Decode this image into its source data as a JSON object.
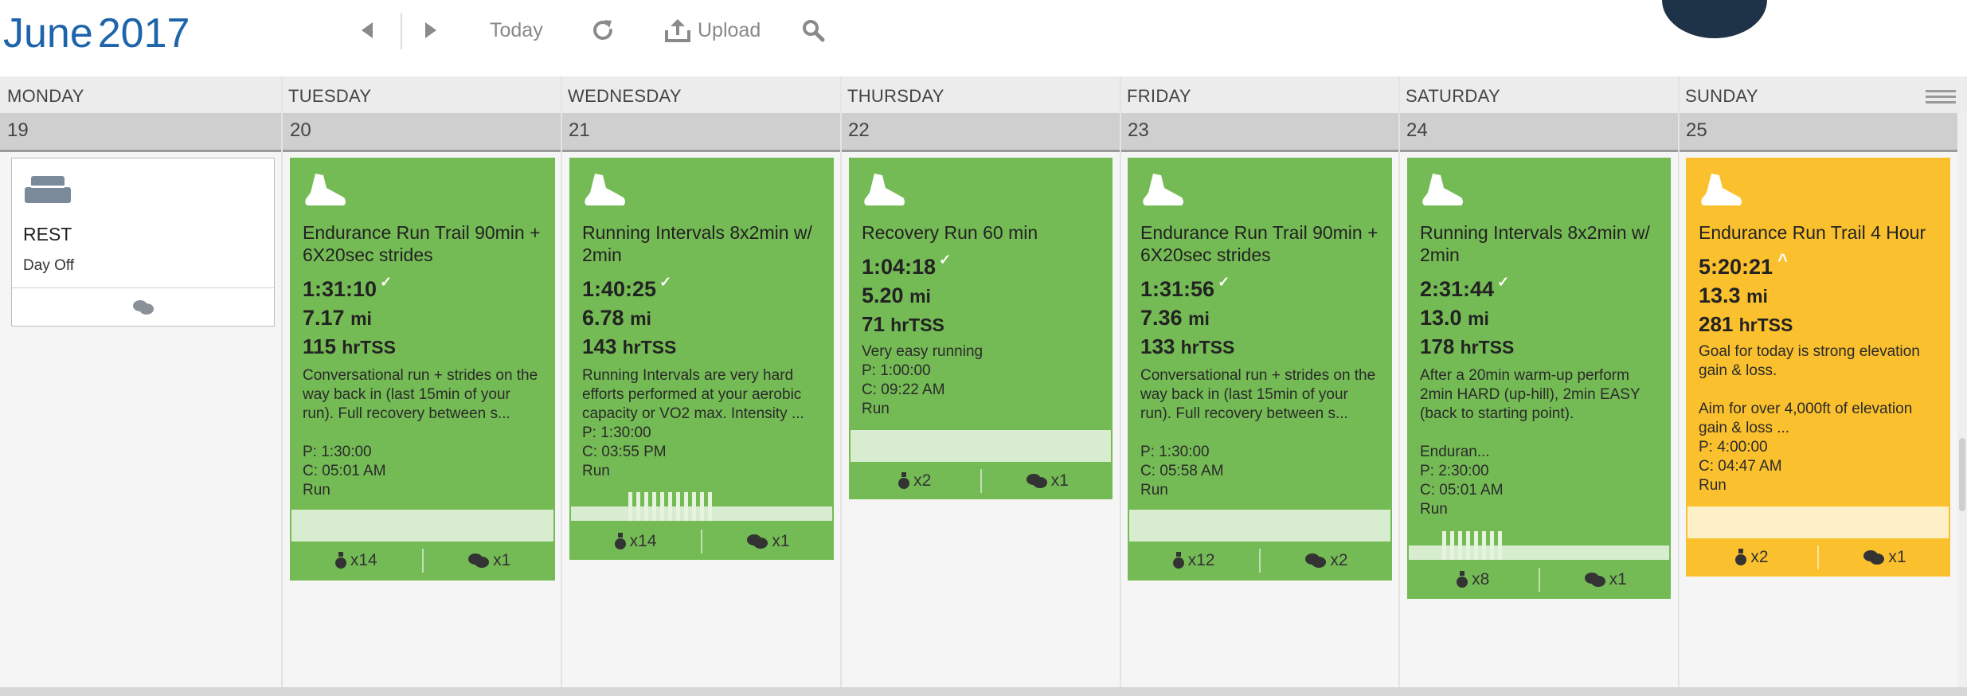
{
  "header": {
    "month": "June",
    "year": "2017",
    "today_label": "Today",
    "upload_label": "Upload"
  },
  "days": [
    {
      "name": "MONDAY",
      "num": "19"
    },
    {
      "name": "TUESDAY",
      "num": "20"
    },
    {
      "name": "WEDNESDAY",
      "num": "21"
    },
    {
      "name": "THURSDAY",
      "num": "22"
    },
    {
      "name": "FRIDAY",
      "num": "23"
    },
    {
      "name": "SATURDAY",
      "num": "24"
    },
    {
      "name": "SUNDAY",
      "num": "25"
    }
  ],
  "rest": {
    "title": "REST",
    "subtitle": "Day Off"
  },
  "workouts": [
    {
      "title": "Endurance Run Trail 90min + 6X20sec strides",
      "duration": "1:31:10",
      "distance_value": "7.17",
      "distance_unit": "mi",
      "tss_value": "115",
      "tss_unit": "hrTSS",
      "description": "Conversational run + strides on the way back in (last 15min of your run). Full recovery between s...",
      "planned": "P: 1:30:00",
      "completed": "C: 05:01 AM",
      "sport": "Run",
      "likes": "x14",
      "comments": "x1"
    },
    {
      "title": "Running Intervals 8x2min w/ 2min",
      "duration": "1:40:25",
      "distance_value": "6.78",
      "distance_unit": "mi",
      "tss_value": "143",
      "tss_unit": "hrTSS",
      "description": "Running Intervals are very hard efforts performed at your aerobic capacity or VO2 max. Intensity ...",
      "planned": "P: 1:30:00",
      "completed": "C: 03:55 PM",
      "sport": "Run",
      "likes": "x14",
      "comments": "x1"
    },
    {
      "title": "Recovery Run 60 min",
      "duration": "1:04:18",
      "distance_value": "5.20",
      "distance_unit": "mi",
      "tss_value": "71",
      "tss_unit": "hrTSS",
      "description": "Very easy running",
      "planned": "P: 1:00:00",
      "completed": "C: 09:22 AM",
      "sport": "Run",
      "likes": "x2",
      "comments": "x1"
    },
    {
      "title": "Endurance Run Trail 90min + 6X20sec strides",
      "duration": "1:31:56",
      "distance_value": "7.36",
      "distance_unit": "mi",
      "tss_value": "133",
      "tss_unit": "hrTSS",
      "description": "Conversational run + strides on the way back in (last 15min of your run). Full recovery between s...",
      "planned": "P: 1:30:00",
      "completed": "C: 05:58 AM",
      "sport": "Run",
      "likes": "x12",
      "comments": "x2"
    },
    {
      "title": "Running Intervals 8x2min w/ 2min",
      "duration": "2:31:44",
      "distance_value": "13.0",
      "distance_unit": "mi",
      "tss_value": "178",
      "tss_unit": "hrTSS",
      "description": "After a 20min warm-up perform 2min HARD (up-hill), 2min EASY (back to starting point).",
      "description2": "Enduran...",
      "planned": "P: 2:30:00",
      "completed": "C: 05:01 AM",
      "sport": "Run",
      "likes": "x8",
      "comments": "x1"
    },
    {
      "title": "Endurance Run Trail 4 Hour",
      "duration": "5:20:21",
      "distance_value": "13.3",
      "distance_unit": "mi",
      "tss_value": "281",
      "tss_unit": "hrTSS",
      "description": "Goal for today is strong elevation gain & loss.",
      "description2": "Aim for over 4,000ft of elevation gain & loss ...",
      "planned": "P: 4:00:00",
      "completed": "C: 04:47 AM",
      "sport": "Run",
      "likes": "x2",
      "comments": "x1"
    }
  ],
  "colors": {
    "accent": "#1e64aa",
    "completed": "#75bb55",
    "over": "#fbc02d"
  }
}
